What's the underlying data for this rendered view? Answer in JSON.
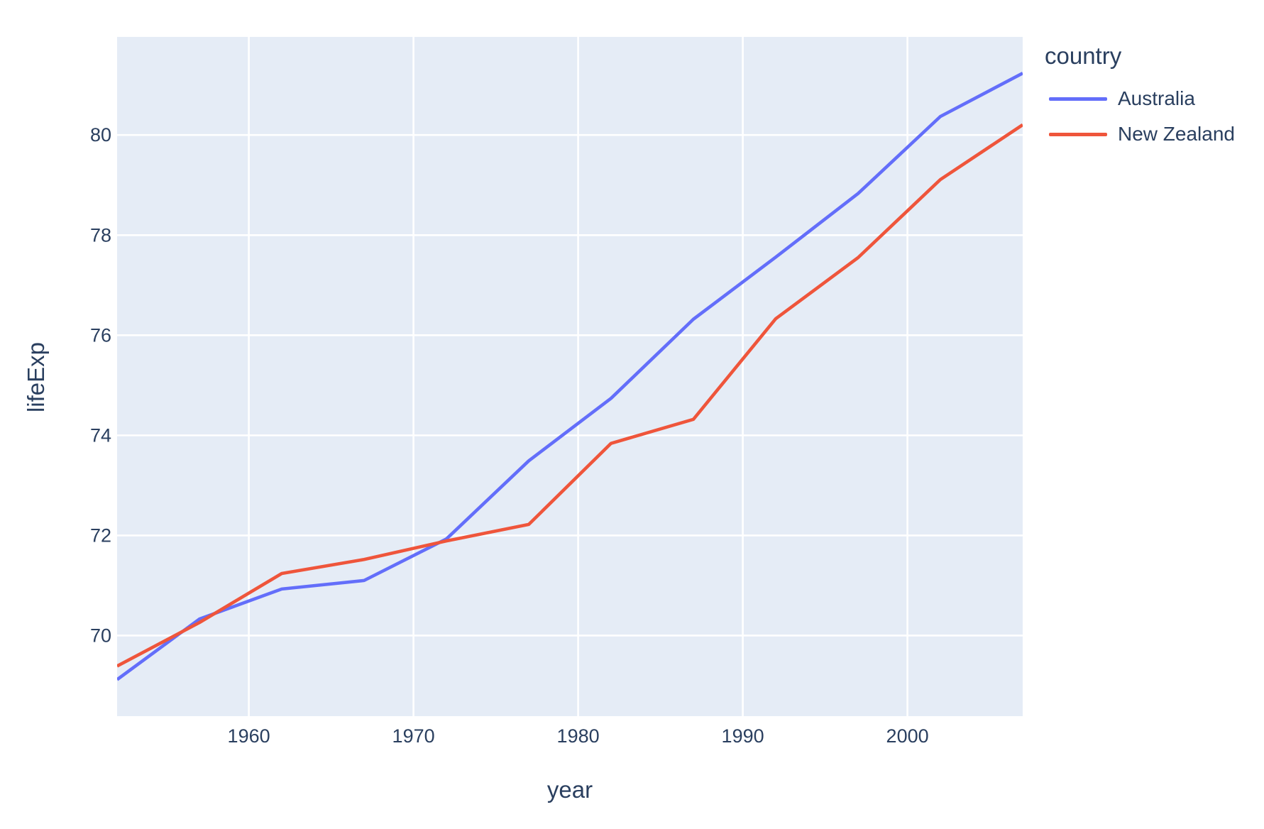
{
  "chart_data": {
    "type": "line",
    "title": "",
    "xlabel": "year",
    "ylabel": "lifeExp",
    "x": [
      1952,
      1957,
      1962,
      1967,
      1972,
      1977,
      1982,
      1987,
      1992,
      1997,
      2002,
      2007
    ],
    "series": [
      {
        "name": "Australia",
        "color": "#636EFA",
        "values": [
          69.12,
          70.33,
          70.93,
          71.1,
          71.93,
          73.49,
          74.74,
          76.32,
          77.56,
          78.83,
          80.37,
          81.235
        ]
      },
      {
        "name": "New Zealand",
        "color": "#EF553B",
        "values": [
          69.39,
          70.26,
          71.24,
          71.52,
          71.89,
          72.22,
          73.84,
          74.32,
          76.33,
          77.55,
          79.11,
          80.204
        ]
      }
    ],
    "xlim": [
      1952,
      2007
    ],
    "ylim": [
      68.39,
      81.96
    ],
    "xticks": [
      1960,
      1970,
      1980,
      1990,
      2000
    ],
    "yticks": [
      70,
      72,
      74,
      76,
      78,
      80
    ],
    "grid": true,
    "legend": {
      "title": "country",
      "position": "outside-top-right"
    },
    "colors": {
      "plot_background": "#E5ECF6",
      "grid": "#FFFFFF",
      "text": "#2A3F5F",
      "page_background": "#FFFFFF"
    }
  }
}
